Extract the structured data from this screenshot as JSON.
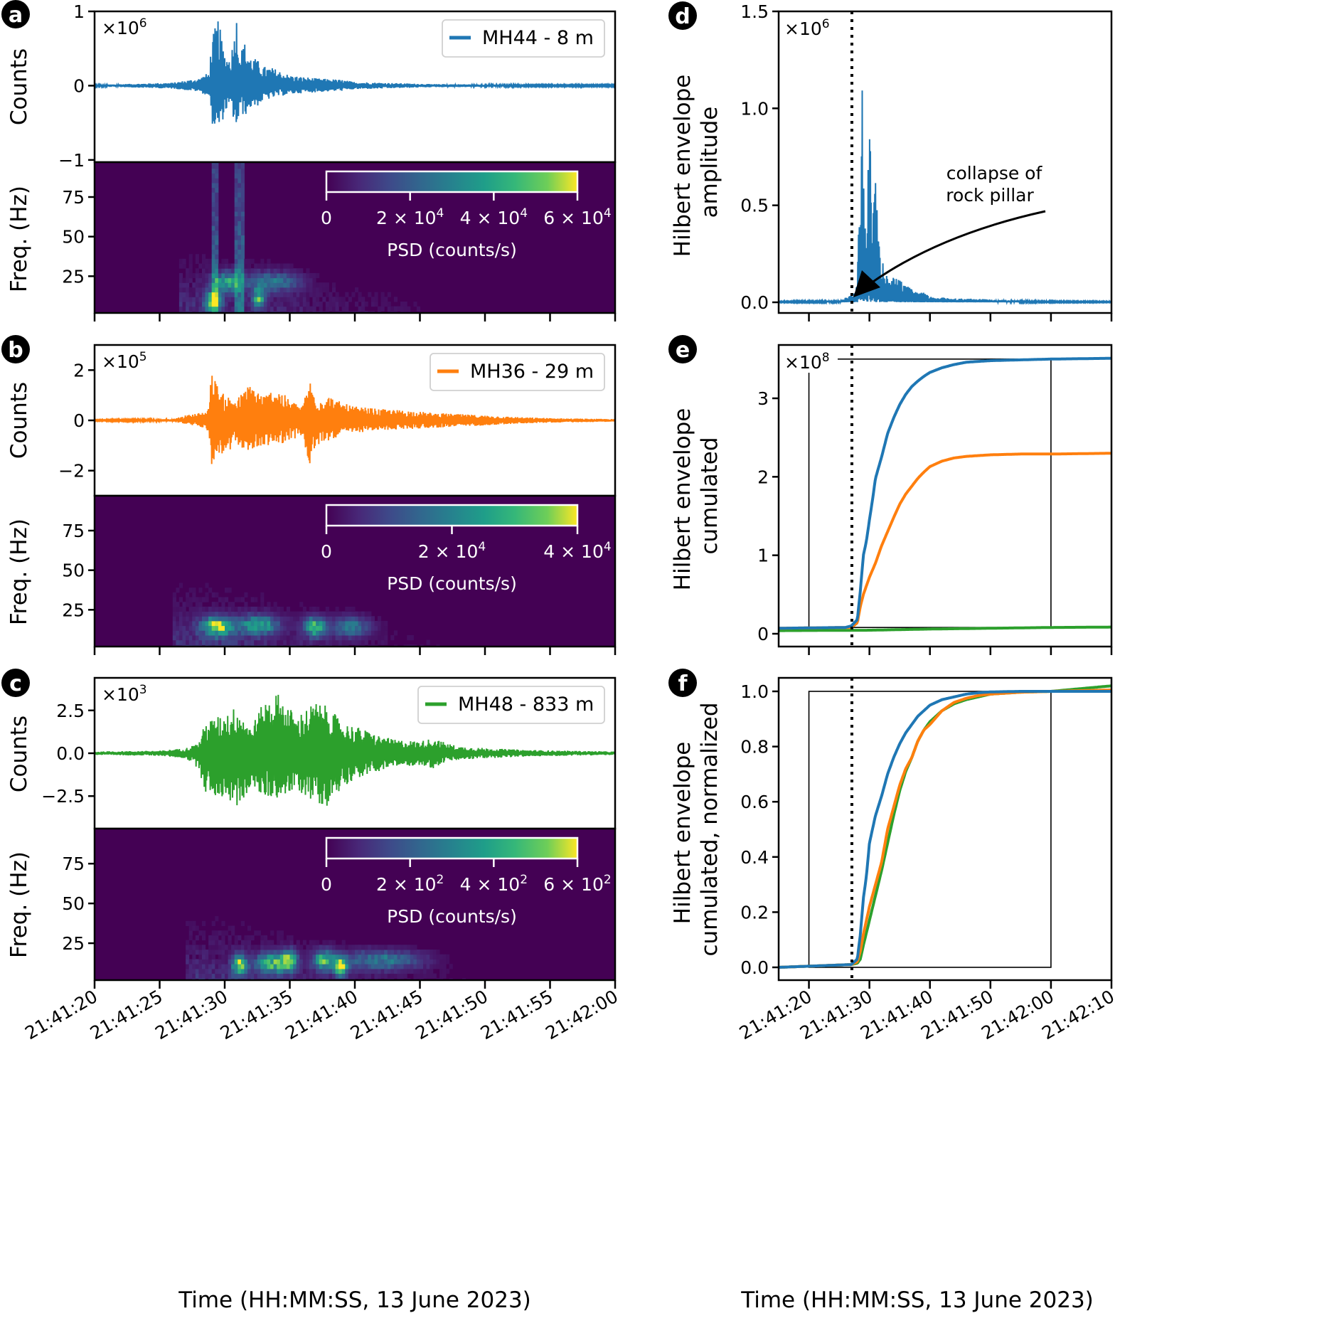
{
  "figure": {
    "time_axis_label": "Time (HH:MM:SS, 13 June 2023)"
  },
  "chart_data": [
    {
      "id": "a",
      "panel_letter": "a",
      "type": "line",
      "title": "",
      "subtype": "seismogram",
      "station": "MH44 - 8 m",
      "color": "#1f77b4",
      "ylabel": "Counts",
      "scale_label": "×10",
      "scale_exp": "6",
      "yticks": [
        1,
        0,
        -1
      ],
      "ytick_labels": [
        "1",
        "0",
        "−1"
      ],
      "ylim": [
        -1.03,
        1.0
      ],
      "xlim_s": [
        0,
        40
      ],
      "envelope": {
        "t_s": [
          0,
          6,
          8,
          8.8,
          9,
          9.5,
          9.8,
          10,
          10.3,
          10.6,
          10.9,
          11.2,
          11.5,
          12,
          12.5,
          13,
          13.5,
          14,
          15,
          16,
          17,
          18,
          19,
          20,
          22,
          24,
          26,
          28,
          30,
          33,
          36,
          40
        ],
        "amp_pos": [
          0.01,
          0.04,
          0.1,
          0.18,
          0.62,
          0.93,
          0.6,
          0.45,
          0.38,
          0.55,
          0.98,
          0.45,
          0.6,
          0.4,
          0.35,
          0.26,
          0.25,
          0.22,
          0.14,
          0.12,
          0.1,
          0.09,
          0.08,
          0.05,
          0.04,
          0.03,
          0.02,
          0.02,
          0.015,
          0.01,
          0.01,
          0.01
        ],
        "amp_neg": [
          0.01,
          0.04,
          0.08,
          0.15,
          0.5,
          0.66,
          0.5,
          0.36,
          0.3,
          0.4,
          0.62,
          0.35,
          0.42,
          0.3,
          0.28,
          0.2,
          0.18,
          0.15,
          0.12,
          0.1,
          0.09,
          0.08,
          0.07,
          0.05,
          0.04,
          0.03,
          0.02,
          0.02,
          0.015,
          0.01,
          0.01,
          0.01
        ]
      },
      "legend_position": "top-right"
    },
    {
      "id": "a-spec",
      "type": "heatmap",
      "subtype": "spectrogram",
      "ylabel": "Freq. (Hz)",
      "yticks": [
        75,
        50,
        25
      ],
      "ylim_hz": [
        0,
        97
      ],
      "xlim_s": [
        0,
        40
      ],
      "colormap": "viridis",
      "colorbar": {
        "label": "PSD (counts/s)",
        "vmax": 60000,
        "ticks": [
          0,
          20000,
          40000,
          60000
        ],
        "tick_mantissas": [
          "0",
          "2 × 10",
          "4 × 10",
          "6 × 10"
        ],
        "tick_exps": [
          "",
          "4",
          "4",
          "4"
        ]
      },
      "energy_bursts": [
        {
          "t_s": 9.0,
          "f_hz": 8,
          "intensity": 1.0,
          "width_s": 0.6
        },
        {
          "t_s": 10.0,
          "f_hz": 20,
          "intensity": 0.7,
          "width_s": 1.0
        },
        {
          "t_s": 12.5,
          "f_hz": 10,
          "intensity": 0.75,
          "width_s": 0.5
        },
        {
          "t_s": 13.5,
          "f_hz": 20,
          "intensity": 0.5,
          "width_s": 2.0
        }
      ],
      "broadband_lines_s": [
        9.2,
        11.0
      ],
      "signal_extent_s": [
        7.5,
        25
      ]
    },
    {
      "id": "b",
      "panel_letter": "b",
      "type": "line",
      "subtype": "seismogram",
      "station": "MH36 - 29 m",
      "color": "#ff7f0e",
      "ylabel": "Counts",
      "scale_label": "×10",
      "scale_exp": "5",
      "yticks": [
        2,
        0,
        -2
      ],
      "ytick_labels": [
        "2",
        "0",
        "−2"
      ],
      "ylim": [
        -3,
        3
      ],
      "xlim_s": [
        0,
        40
      ],
      "envelope": {
        "t_s": [
          0,
          6,
          7,
          8.5,
          8.8,
          9,
          9.5,
          10,
          11,
          12,
          13,
          14,
          15,
          16,
          16.5,
          17,
          17.5,
          18,
          19,
          20,
          21,
          22,
          24,
          26,
          28,
          30,
          33,
          36,
          40
        ],
        "amp_pos": [
          0.02,
          0.05,
          0.2,
          0.35,
          0.6,
          2.1,
          1.3,
          1.0,
          0.9,
          1.5,
          1.0,
          1.35,
          0.8,
          0.6,
          1.7,
          1.0,
          0.9,
          1.0,
          0.7,
          0.55,
          0.5,
          0.45,
          0.4,
          0.3,
          0.25,
          0.2,
          0.12,
          0.08,
          0.05
        ],
        "amp_neg": [
          0.02,
          0.05,
          0.15,
          0.3,
          0.5,
          2.2,
          1.3,
          1.5,
          1.0,
          1.3,
          1.0,
          1.0,
          0.8,
          0.6,
          2.0,
          1.1,
          0.9,
          0.8,
          0.6,
          0.5,
          0.45,
          0.4,
          0.35,
          0.3,
          0.25,
          0.2,
          0.12,
          0.08,
          0.05
        ]
      },
      "legend_position": "top-right"
    },
    {
      "id": "b-spec",
      "type": "heatmap",
      "subtype": "spectrogram",
      "ylabel": "Freq. (Hz)",
      "yticks": [
        75,
        50,
        25
      ],
      "ylim_hz": [
        0,
        97
      ],
      "xlim_s": [
        0,
        40
      ],
      "colormap": "viridis",
      "colorbar": {
        "label": "PSD (counts/s)",
        "vmax": 40000,
        "ticks": [
          0,
          20000,
          40000
        ],
        "tick_mantissas": [
          "0",
          "2 × 10",
          "4 × 10"
        ],
        "tick_exps": [
          "",
          "4",
          "4"
        ]
      },
      "energy_bursts": [
        {
          "t_s": 9.3,
          "f_hz": 13,
          "intensity": 1.0,
          "width_s": 1.2
        },
        {
          "t_s": 12.5,
          "f_hz": 14,
          "intensity": 0.7,
          "width_s": 1.5
        },
        {
          "t_s": 16.8,
          "f_hz": 13,
          "intensity": 0.85,
          "width_s": 0.8
        },
        {
          "t_s": 19.5,
          "f_hz": 13,
          "intensity": 0.5,
          "width_s": 1.5
        }
      ],
      "broadband_lines_s": [],
      "signal_extent_s": [
        7,
        27
      ]
    },
    {
      "id": "c",
      "panel_letter": "c",
      "type": "line",
      "subtype": "seismogram",
      "station": "MH48 - 833 m",
      "color": "#2ca02c",
      "ylabel": "Counts",
      "scale_label": "×10",
      "scale_exp": "3",
      "yticks": [
        2.5,
        0.0,
        -2.5
      ],
      "ytick_labels": [
        "2.5",
        "0.0",
        "−2.5"
      ],
      "ylim": [
        -4.4,
        4.4
      ],
      "xlim_s": [
        0,
        40
      ],
      "envelope": {
        "t_s": [
          0,
          5,
          7,
          8,
          8.5,
          9,
          10,
          11,
          12,
          13,
          14,
          15,
          15.5,
          16,
          17,
          18,
          19,
          20,
          21,
          22,
          23,
          25,
          26,
          27,
          28,
          30,
          33,
          36,
          40
        ],
        "amp_pos": [
          0.1,
          0.15,
          0.3,
          0.6,
          1.8,
          2.0,
          2.3,
          2.8,
          1.5,
          3.0,
          3.6,
          2.7,
          2.0,
          2.5,
          3.0,
          2.7,
          1.8,
          1.6,
          1.3,
          1.0,
          0.8,
          0.7,
          0.9,
          0.6,
          0.4,
          0.3,
          0.2,
          0.15,
          0.1
        ],
        "amp_neg": [
          0.1,
          0.15,
          0.3,
          0.9,
          2.3,
          2.5,
          2.6,
          3.2,
          2.0,
          2.6,
          2.6,
          2.4,
          2.2,
          2.4,
          2.9,
          3.1,
          2.0,
          1.5,
          1.3,
          1.0,
          0.8,
          0.7,
          0.9,
          0.5,
          0.4,
          0.3,
          0.2,
          0.15,
          0.1
        ]
      },
      "legend_position": "top-right"
    },
    {
      "id": "c-spec",
      "type": "heatmap",
      "subtype": "spectrogram",
      "ylabel": "Freq. (Hz)",
      "yticks": [
        75,
        50,
        25
      ],
      "ylim_hz": [
        0,
        97
      ],
      "xlim_s": [
        0,
        40
      ],
      "colormap": "viridis",
      "colorbar": {
        "label": "PSD (counts/s)",
        "vmax": 600,
        "ticks": [
          0,
          200,
          400,
          600
        ],
        "tick_mantissas": [
          "0",
          "2 × 10",
          "4 × 10",
          "6 × 10"
        ],
        "tick_exps": [
          "",
          "2",
          "2",
          "2"
        ]
      },
      "energy_bursts": [
        {
          "t_s": 11.0,
          "f_hz": 10,
          "intensity": 0.95,
          "width_s": 0.5
        },
        {
          "t_s": 13.5,
          "f_hz": 11,
          "intensity": 0.85,
          "width_s": 1.2
        },
        {
          "t_s": 14.8,
          "f_hz": 13,
          "intensity": 0.9,
          "width_s": 0.6
        },
        {
          "t_s": 17.5,
          "f_hz": 13,
          "intensity": 0.8,
          "width_s": 0.8
        },
        {
          "t_s": 18.8,
          "f_hz": 9,
          "intensity": 1.0,
          "width_s": 0.5
        },
        {
          "t_s": 22,
          "f_hz": 13,
          "intensity": 0.5,
          "width_s": 3.0
        }
      ],
      "broadband_lines_s": [],
      "signal_extent_s": [
        8,
        32
      ]
    },
    {
      "id": "d",
      "panel_letter": "d",
      "type": "line",
      "subtype": "hilbert-envelope",
      "ylabel_lines": [
        "Hilbert envelope",
        "amplitude"
      ],
      "scale_label": "×10",
      "scale_exp": "6",
      "yticks": [
        0.0,
        0.5,
        1.0,
        1.5
      ],
      "ytick_labels": [
        "0.0",
        "0.5",
        "1.0",
        "1.5"
      ],
      "ylim": [
        -0.05,
        1.5
      ],
      "xlim_s": [
        -5,
        50
      ],
      "color": "#1f77b4",
      "onset_line_s": 7.1,
      "annotation": {
        "text_lines": [
          "collapse of",
          "rock pillar"
        ],
        "arrow_target_s": 7.7,
        "arrow_target_y": 0.02
      },
      "peaks": {
        "t_s": [
          -5,
          5,
          6.5,
          7.5,
          8.0,
          8.6,
          8.8,
          9.0,
          9.3,
          9.6,
          10.0,
          10.5,
          11.0,
          11.3,
          11.7,
          12.2,
          12.7,
          13.3,
          14,
          15,
          16,
          17,
          18,
          19,
          20,
          22,
          25,
          30,
          35,
          40,
          50
        ],
        "amp": [
          0.005,
          0.01,
          0.03,
          0.05,
          0.15,
          0.78,
          1.3,
          0.65,
          0.4,
          0.48,
          0.98,
          0.5,
          0.66,
          0.45,
          0.25,
          0.22,
          0.15,
          0.1,
          0.13,
          0.12,
          0.08,
          0.08,
          0.05,
          0.05,
          0.03,
          0.025,
          0.02,
          0.015,
          0.01,
          0.006,
          0.005
        ]
      }
    },
    {
      "id": "e",
      "panel_letter": "e",
      "type": "line",
      "subtype": "hilbert-envelope-cumulated",
      "ylabel_lines": [
        "Hilbert envelope",
        "cumulated"
      ],
      "scale_label": "×10",
      "scale_exp": "8",
      "yticks": [
        0,
        1,
        2,
        3
      ],
      "ytick_labels": [
        "0",
        "1",
        "2",
        "3"
      ],
      "ylim": [
        -0.16,
        3.65
      ],
      "xlim_s": [
        -5,
        50
      ],
      "onset_line_s": 7.1,
      "inset_box": {
        "t_start_s": 0,
        "t_end_s": 40,
        "y_low": 0.08,
        "y_high": 3.5
      },
      "series": [
        {
          "name": "MH44 - 8 m",
          "color": "#1f77b4",
          "t_s": [
            -5,
            6,
            7,
            8,
            8.5,
            9,
            9.5,
            10,
            10.5,
            11,
            12,
            13,
            14,
            15,
            16,
            17,
            18,
            19,
            20,
            22,
            24,
            26,
            28,
            30,
            35,
            40,
            50
          ],
          "values": [
            0.07,
            0.08,
            0.1,
            0.18,
            0.55,
            1.0,
            1.18,
            1.45,
            1.7,
            1.98,
            2.25,
            2.55,
            2.75,
            2.92,
            3.05,
            3.15,
            3.22,
            3.28,
            3.33,
            3.39,
            3.43,
            3.46,
            3.47,
            3.48,
            3.49,
            3.5,
            3.51
          ]
        },
        {
          "name": "MH36 - 29 m",
          "color": "#ff7f0e",
          "t_s": [
            -5,
            6,
            7,
            8,
            8.5,
            9,
            10,
            11,
            12,
            13,
            14,
            15,
            16,
            17,
            18,
            19,
            20,
            22,
            24,
            26,
            28,
            30,
            35,
            40,
            50
          ],
          "values": [
            0.07,
            0.08,
            0.08,
            0.14,
            0.35,
            0.5,
            0.72,
            0.9,
            1.12,
            1.3,
            1.48,
            1.65,
            1.78,
            1.88,
            1.98,
            2.06,
            2.13,
            2.2,
            2.24,
            2.26,
            2.27,
            2.28,
            2.29,
            2.29,
            2.3
          ]
        },
        {
          "name": "MH48 - 833 m",
          "color": "#2ca02c",
          "t_s": [
            -5,
            10,
            20,
            30,
            40,
            50
          ],
          "values": [
            0.04,
            0.045,
            0.06,
            0.07,
            0.08,
            0.085
          ]
        }
      ]
    },
    {
      "id": "f",
      "panel_letter": "f",
      "type": "line",
      "subtype": "hilbert-envelope-cumulated-normalized",
      "ylabel_lines": [
        "Hilbert envelope",
        "cumulated, normalized"
      ],
      "yticks": [
        0.0,
        0.2,
        0.4,
        0.6,
        0.8,
        1.0
      ],
      "ytick_labels": [
        "0.0",
        "0.2",
        "0.4",
        "0.6",
        "0.8",
        "1.0"
      ],
      "ylim": [
        -0.05,
        1.05
      ],
      "xlim_s": [
        -5,
        50
      ],
      "xticks_s": [
        0,
        10,
        20,
        30,
        40,
        50
      ],
      "xtick_labels": [
        "21:41:20",
        "21:41:30",
        "21:41:40",
        "21:41:50",
        "21:42:00",
        "21:42:10"
      ],
      "onset_line_s": 7.1,
      "inset_box": {
        "t_start_s": 0,
        "t_end_s": 40,
        "y_low": 0.0,
        "y_high": 1.0
      },
      "series": [
        {
          "name": "MH44 - 8 m",
          "color": "#1f77b4",
          "t_s": [
            -5,
            7,
            8,
            8.5,
            9,
            9.5,
            10,
            11,
            12,
            13,
            14,
            15,
            16,
            17,
            18,
            19,
            20,
            22,
            24,
            26,
            28,
            30,
            35,
            40,
            50
          ],
          "values": [
            0.0,
            0.01,
            0.03,
            0.12,
            0.25,
            0.33,
            0.45,
            0.55,
            0.62,
            0.7,
            0.76,
            0.81,
            0.85,
            0.88,
            0.91,
            0.93,
            0.95,
            0.97,
            0.98,
            0.99,
            0.995,
            0.998,
            1.0,
            1.0,
            1.0
          ]
        },
        {
          "name": "MH36 - 29 m",
          "color": "#ff7f0e",
          "t_s": [
            -5,
            7,
            8,
            8.5,
            9,
            10,
            11,
            12,
            13,
            14,
            15,
            16,
            17,
            18,
            19,
            20,
            22,
            24,
            26,
            28,
            30,
            35,
            40,
            50
          ],
          "values": [
            0.0,
            0.01,
            0.02,
            0.06,
            0.12,
            0.22,
            0.3,
            0.38,
            0.5,
            0.58,
            0.66,
            0.72,
            0.76,
            0.82,
            0.86,
            0.88,
            0.93,
            0.96,
            0.975,
            0.985,
            0.99,
            0.997,
            1.0,
            1.005
          ]
        },
        {
          "name": "MH48 - 833 m",
          "color": "#2ca02c",
          "t_s": [
            -5,
            7,
            8,
            8.5,
            9,
            10,
            11,
            12,
            13,
            14,
            15,
            16,
            17,
            18,
            19,
            20,
            22,
            24,
            26,
            28,
            30,
            35,
            40,
            50
          ],
          "values": [
            0.0,
            0.01,
            0.015,
            0.03,
            0.08,
            0.17,
            0.26,
            0.35,
            0.45,
            0.55,
            0.64,
            0.71,
            0.76,
            0.82,
            0.86,
            0.89,
            0.93,
            0.955,
            0.97,
            0.98,
            0.99,
            0.997,
            1.0,
            1.02
          ]
        }
      ]
    }
  ],
  "left_time_axis": {
    "xticks_s": [
      0,
      5,
      10,
      15,
      20,
      25,
      30,
      35,
      40
    ],
    "xtick_labels": [
      "21:41:20",
      "21:41:25",
      "21:41:30",
      "21:41:35",
      "21:41:40",
      "21:41:45",
      "21:41:50",
      "21:41:55",
      "21:42:00"
    ]
  },
  "right_time_axis": {
    "xticks_s": [
      0,
      10,
      20,
      30,
      40,
      50
    ],
    "xtick_labels": [
      "21:41:20",
      "21:41:30",
      "21:41:40",
      "21:41:50",
      "21:42:00",
      "21:42:10"
    ]
  }
}
